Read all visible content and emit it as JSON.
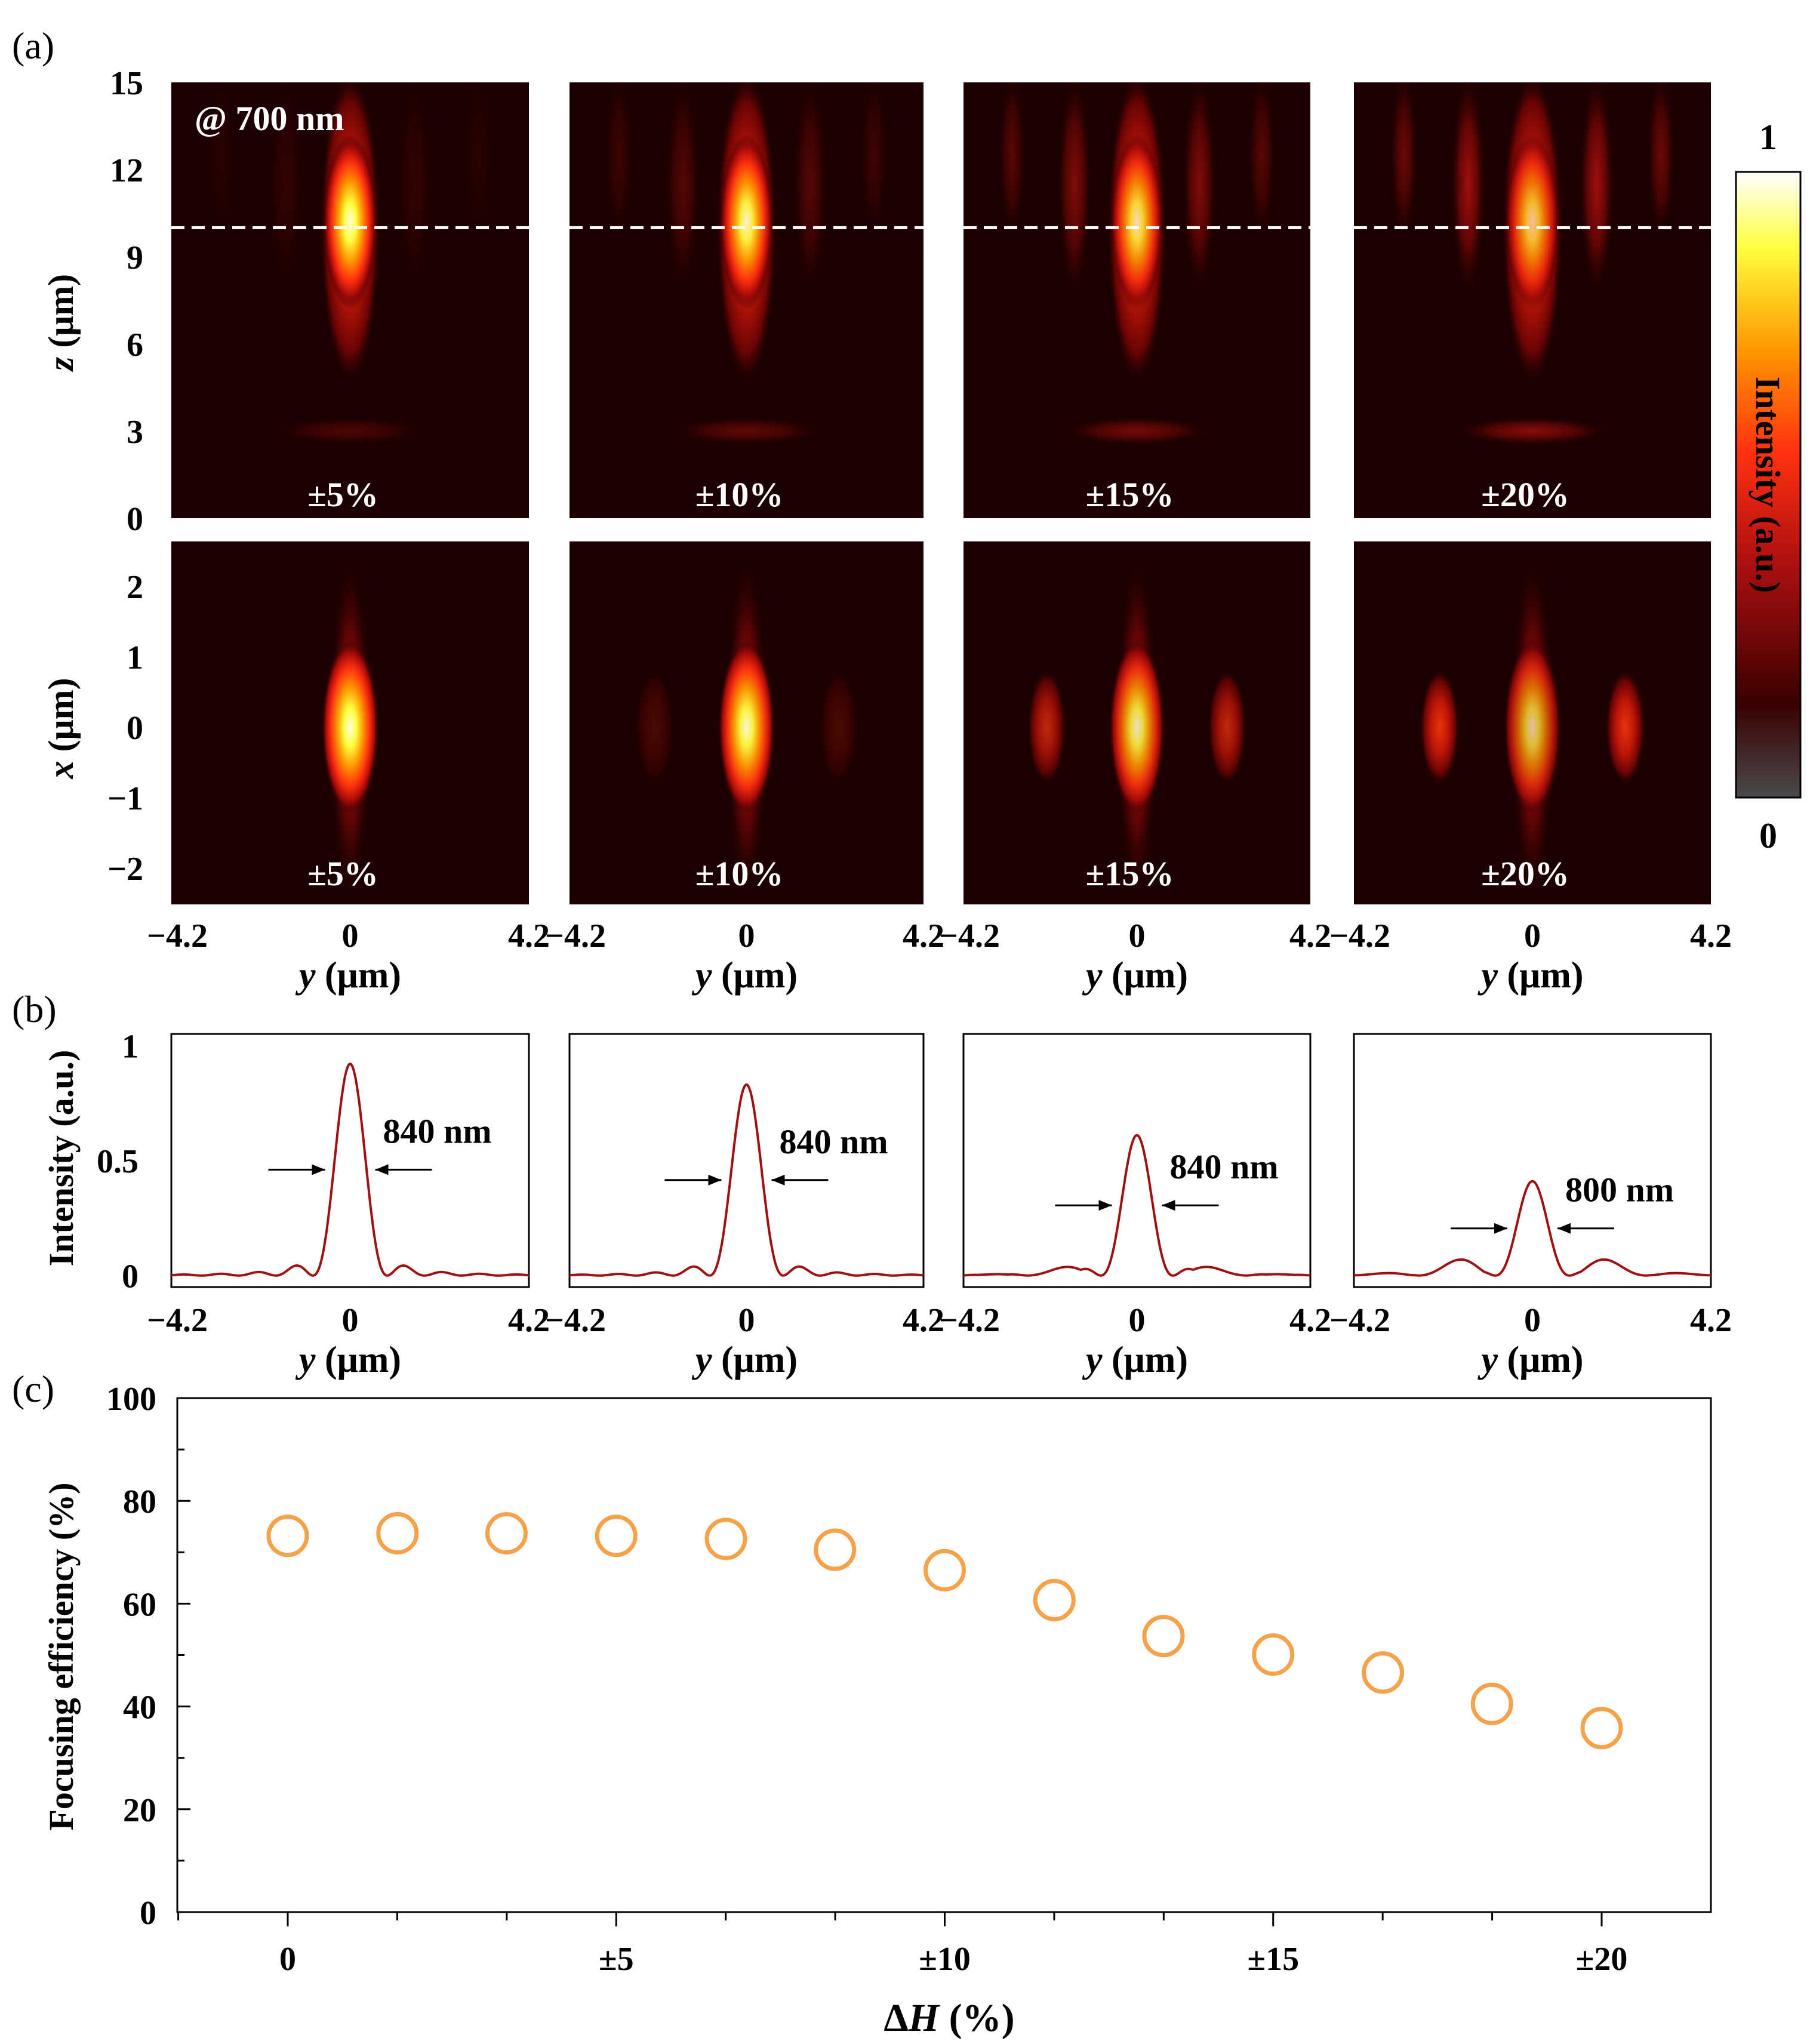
{
  "panel_labels": {
    "a": "(a)",
    "b": "(b)",
    "c": "(c)"
  },
  "wavelength_label": "@ 700 nm",
  "colorbar": {
    "label": "Intensity (a.u.)",
    "max_label": "1",
    "min_label": "0",
    "colors": [
      "#4a4a4a",
      "#3a0000",
      "#b01010",
      "#ff3010",
      "#ff9a00",
      "#ffff40",
      "#ffffff"
    ]
  },
  "rows": {
    "yz": {
      "ylabel_var": "z",
      "ylabel_unit": " (μm)",
      "ticks": [
        "15",
        "12",
        "9",
        "6",
        "3",
        "0"
      ]
    },
    "xy": {
      "ylabel_var": "x",
      "ylabel_unit": " (μm)",
      "ticks": [
        "2",
        "1",
        "0",
        "−1",
        "−2"
      ]
    }
  },
  "x_axis": {
    "var": "y",
    "unit": " (μm)",
    "ticks": [
      "−4.2",
      "0",
      "4.2"
    ]
  },
  "tolerances": [
    "±5%",
    "±10%",
    "±15%",
    "±20%"
  ],
  "chart_data": [
    {
      "type": "line",
      "panel": "(b)",
      "xlabel": "y (μm)",
      "ylabel": "Intensity (a.u.)",
      "xlim": [
        -4.2,
        4.2
      ],
      "ylim": [
        -0.05,
        1.05
      ],
      "y_ticks": [
        "1",
        "0.5",
        "0"
      ],
      "series": [
        {
          "peak": 0.92,
          "side_lobe": 0.02,
          "fwhm_label": "840 nm"
        },
        {
          "peak": 0.83,
          "side_lobe": 0.03,
          "fwhm_label": "840 nm"
        },
        {
          "peak": 0.61,
          "side_lobe": 0.07,
          "fwhm_label": "840 nm"
        },
        {
          "peak": 0.41,
          "side_lobe": 0.13,
          "fwhm_label": "800 nm"
        }
      ]
    },
    {
      "type": "scatter",
      "panel": "(c)",
      "xlabel_prefix": "Δ",
      "xlabel_var": "H",
      "xlabel_suffix": " (%)",
      "ylabel": "Focusing efficiency (%)",
      "ylim": [
        0,
        100
      ],
      "y_ticks": [
        "100",
        "80",
        "60",
        "40",
        "20",
        "0"
      ],
      "x_tick_labels": [
        "0",
        "±5",
        "±10",
        "±15",
        "±20"
      ],
      "x": [
        0,
        1.67,
        3.33,
        5,
        6.67,
        8.33,
        10,
        11.67,
        13.33,
        15,
        16.67,
        18.33,
        20
      ],
      "y": [
        73.2,
        73.7,
        73.7,
        73.2,
        72.6,
        70.5,
        66.5,
        60.7,
        53.7,
        50.1,
        46.6,
        40.5,
        35.8
      ],
      "marker_color": "#f5a24a"
    }
  ]
}
